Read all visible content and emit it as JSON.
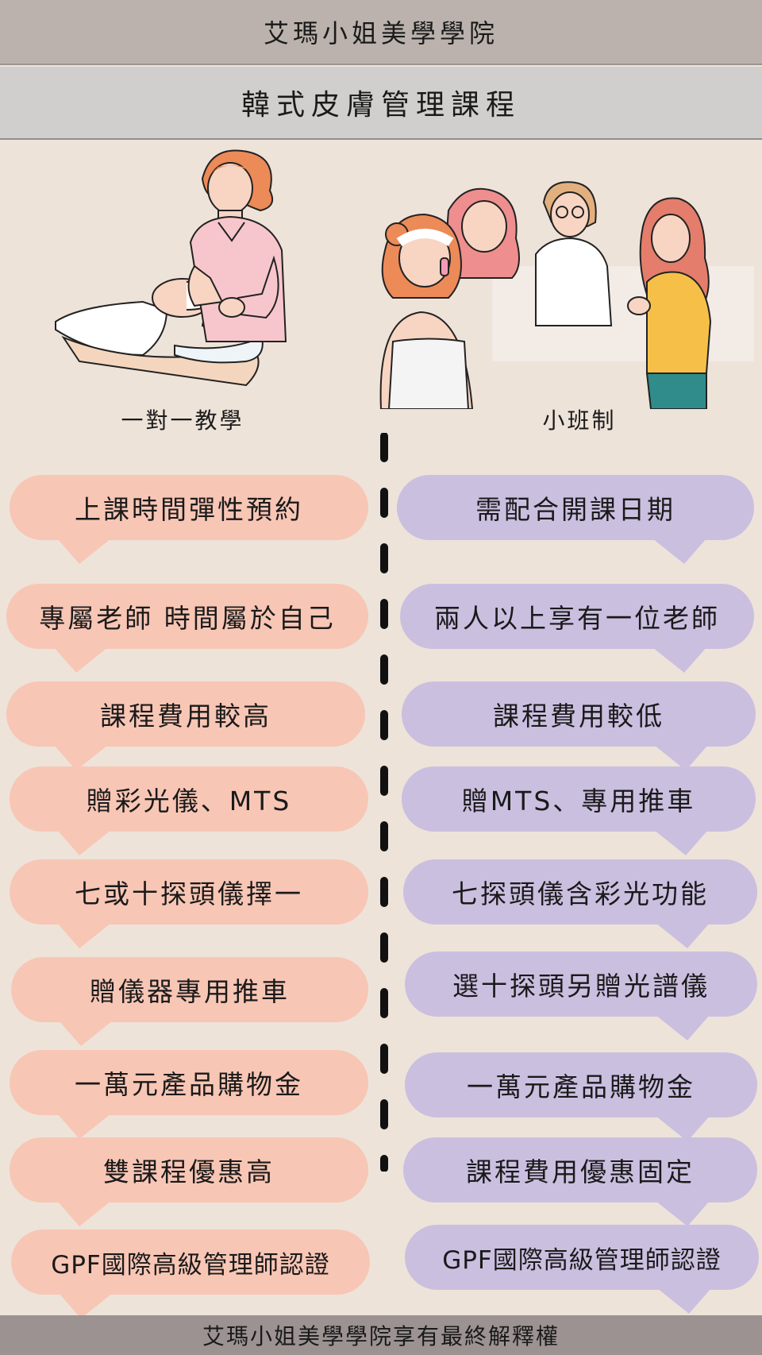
{
  "header": {
    "school_name": "艾瑪小姐美學學院",
    "course_title": "韓式皮膚管理課程"
  },
  "columns": {
    "left_title": "一對一教學",
    "right_title": "小班制"
  },
  "left_items": [
    "上課時間彈性預約",
    "專屬老師  時間屬於自己",
    "課程費用較高",
    "贈彩光儀、MTS",
    "七或十探頭儀擇一",
    "贈儀器專用推車",
    "一萬元產品購物金",
    "雙課程優惠高",
    "GPF國際高級管理師認證"
  ],
  "right_items": [
    "需配合開課日期",
    "兩人以上享有一位老師",
    "課程費用較低",
    "贈MTS、專用推車",
    "七探頭儀含彩光功能",
    "選十探頭另贈光譜儀",
    "一萬元產品購物金",
    "課程費用優惠固定",
    "GPF國際高級管理師認證"
  ],
  "footer": {
    "notice": "艾瑪小姐美學學院享有最終解釋權"
  },
  "colors": {
    "pink_bubble": "#f8c6b5",
    "purple_bubble": "#cbbfe0",
    "background": "#ede3d9"
  }
}
